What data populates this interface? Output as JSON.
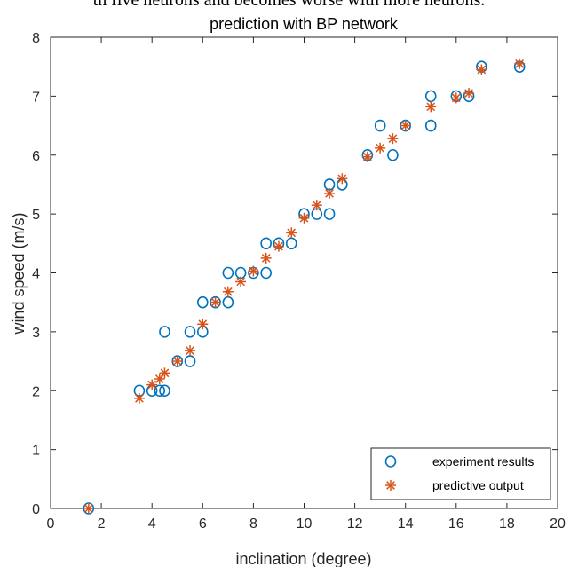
{
  "caption_text": "th five neurons and becomes worse with more neurons.",
  "chart_data": {
    "type": "scatter",
    "title": "prediction with BP network",
    "xlabel": "inclination (degree)",
    "ylabel": "wind speed (m/s)",
    "xlim": [
      0,
      20
    ],
    "ylim": [
      0,
      8
    ],
    "xticks": [
      0,
      2,
      4,
      6,
      8,
      10,
      12,
      14,
      16,
      18,
      20
    ],
    "yticks": [
      0,
      1,
      2,
      3,
      4,
      5,
      6,
      7,
      8
    ],
    "grid": false,
    "legend_position": "bottom-right",
    "series": [
      {
        "name": "experiment results",
        "marker": "circle",
        "color": "#0072BD",
        "points": [
          [
            1.5,
            0
          ],
          [
            3.5,
            2
          ],
          [
            4,
            2
          ],
          [
            4.3,
            2
          ],
          [
            4.5,
            2
          ],
          [
            4.5,
            3
          ],
          [
            5,
            2.5
          ],
          [
            5.5,
            2.5
          ],
          [
            5.5,
            3
          ],
          [
            6,
            3
          ],
          [
            6,
            3.5
          ],
          [
            6.5,
            3.5
          ],
          [
            7,
            3.5
          ],
          [
            7,
            4
          ],
          [
            7.5,
            4
          ],
          [
            8,
            4
          ],
          [
            8.5,
            4
          ],
          [
            8.5,
            4.5
          ],
          [
            9,
            4.5
          ],
          [
            9.5,
            4.5
          ],
          [
            10,
            5
          ],
          [
            10.5,
            5
          ],
          [
            11,
            5
          ],
          [
            11,
            5.5
          ],
          [
            11.5,
            5.5
          ],
          [
            12.5,
            6
          ],
          [
            13,
            6.5
          ],
          [
            13.5,
            6
          ],
          [
            14,
            6.5
          ],
          [
            15,
            6.5
          ],
          [
            15,
            7
          ],
          [
            16,
            7
          ],
          [
            16.5,
            7
          ],
          [
            17,
            7.5
          ],
          [
            18.5,
            7.5
          ]
        ]
      },
      {
        "name": "predictive output",
        "marker": "asterisk",
        "color": "#D95319",
        "points": [
          [
            1.5,
            0
          ],
          [
            3.5,
            1.87
          ],
          [
            4,
            2.1
          ],
          [
            4.3,
            2.2
          ],
          [
            4.5,
            2.3
          ],
          [
            5,
            2.5
          ],
          [
            5.5,
            2.68
          ],
          [
            6,
            3.13
          ],
          [
            6.5,
            3.5
          ],
          [
            7,
            3.68
          ],
          [
            7.5,
            3.85
          ],
          [
            8,
            4.03
          ],
          [
            8.5,
            4.25
          ],
          [
            9,
            4.45
          ],
          [
            9.5,
            4.68
          ],
          [
            10,
            4.93
          ],
          [
            10.5,
            5.15
          ],
          [
            11,
            5.35
          ],
          [
            11.5,
            5.6
          ],
          [
            12.5,
            5.97
          ],
          [
            13,
            6.12
          ],
          [
            13.5,
            6.28
          ],
          [
            14,
            6.5
          ],
          [
            15,
            6.82
          ],
          [
            16,
            6.97
          ],
          [
            16.5,
            7.05
          ],
          [
            17,
            7.45
          ],
          [
            18.5,
            7.55
          ]
        ]
      }
    ]
  }
}
